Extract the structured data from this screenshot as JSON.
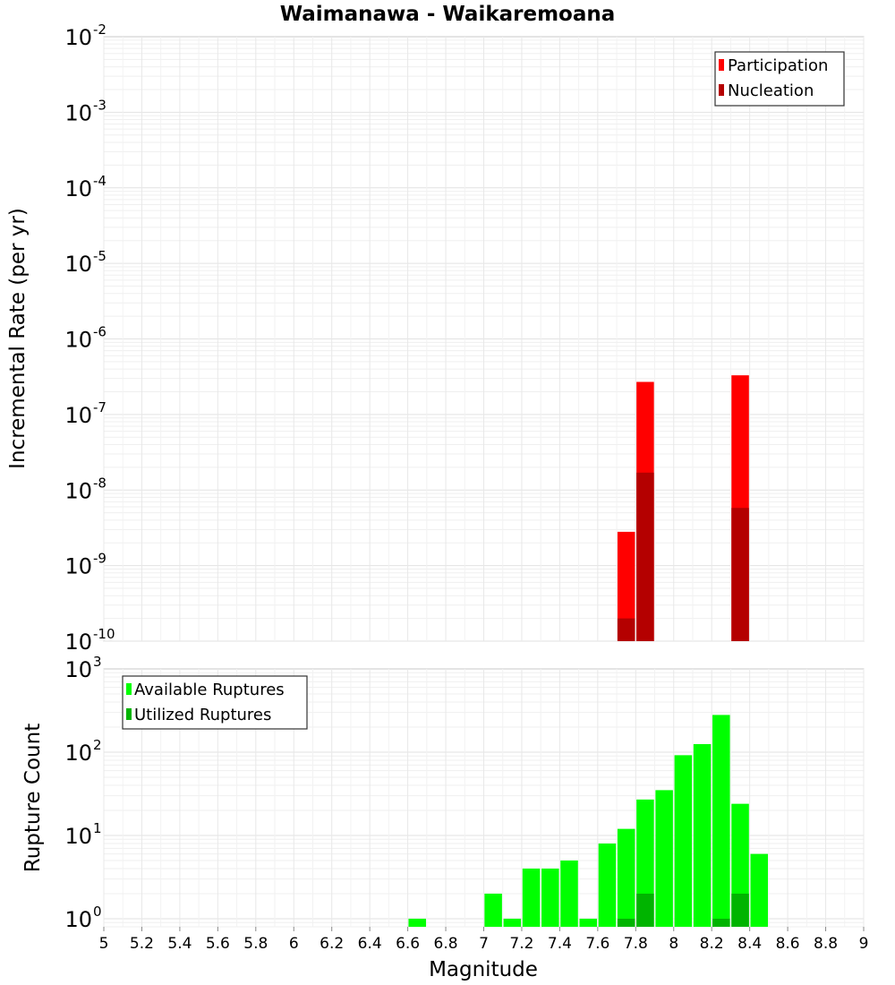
{
  "title": "Waimanawa - Waikaremoana",
  "chart_data": [
    {
      "type": "bar",
      "ylabel": "Incremental Rate (per yr)",
      "yscale": "log",
      "ylim": [
        1e-10,
        0.01
      ],
      "ytick_bases": [
        "10",
        "10",
        "10",
        "10",
        "10",
        "10",
        "10",
        "10",
        "10"
      ],
      "ytick_exponents": [
        "-2",
        "-3",
        "-4",
        "-5",
        "-6",
        "-7",
        "-8",
        "-9",
        "-10"
      ],
      "ytick_values": [
        0.01,
        0.001,
        0.0001,
        1e-05,
        1e-06,
        1e-07,
        1e-08,
        1e-09,
        1e-10
      ],
      "x": [
        7.75,
        7.85,
        8.35
      ],
      "series": [
        {
          "name": "Participation",
          "color": "#ff0000",
          "values": [
            2.8e-09,
            2.7e-07,
            3.3e-07
          ]
        },
        {
          "name": "Nucleation",
          "color": "#b40000",
          "values": [
            2e-10,
            1.7e-08,
            5.8e-09
          ]
        }
      ],
      "legend": "top-right"
    },
    {
      "type": "bar",
      "ylabel": "Rupture Count",
      "yscale": "log",
      "ylim": [
        0.8,
        1000
      ],
      "ytick_bases": [
        "10",
        "10",
        "10",
        "10"
      ],
      "ytick_exponents": [
        "3",
        "2",
        "1",
        "0"
      ],
      "ytick_values": [
        1000,
        100,
        10,
        1
      ],
      "xlabel": "Magnitude",
      "xlim": [
        5,
        9
      ],
      "xtick_labels": [
        "5",
        "5.2",
        "5.4",
        "5.6",
        "5.8",
        "6",
        "6.2",
        "6.4",
        "6.6",
        "6.8",
        "7",
        "7.2",
        "7.4",
        "7.6",
        "7.8",
        "8",
        "8.2",
        "8.4",
        "8.6",
        "8.8",
        "9"
      ],
      "xtick_values": [
        5,
        5.2,
        5.4,
        5.6,
        5.8,
        6,
        6.2,
        6.4,
        6.6,
        6.8,
        7,
        7.2,
        7.4,
        7.6,
        7.8,
        8,
        8.2,
        8.4,
        8.6,
        8.8,
        9
      ],
      "series": [
        {
          "name": "Available Ruptures",
          "color": "#00ff00",
          "x": [
            6.65,
            7.05,
            7.15,
            7.25,
            7.35,
            7.45,
            7.55,
            7.65,
            7.75,
            7.85,
            7.95,
            8.05,
            8.15,
            8.25,
            8.35,
            8.45
          ],
          "values": [
            1,
            2,
            1,
            4,
            4,
            5,
            1,
            8,
            12,
            27,
            35,
            92,
            125,
            280,
            24,
            6
          ]
        },
        {
          "name": "Utilized Ruptures",
          "color": "#00b400",
          "x": [
            7.75,
            7.85,
            8.25,
            8.35
          ],
          "values": [
            1,
            2,
            1,
            2
          ]
        }
      ],
      "legend": "top-left"
    }
  ]
}
